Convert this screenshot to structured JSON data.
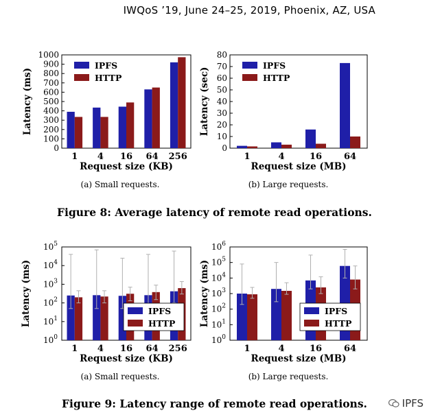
{
  "header": "IWQoS ’19, June 24–25, 2019, Phoenix, AZ, USA",
  "colors": {
    "ipfs": "#1f1fa8",
    "http": "#8b1a1a",
    "err": "#b0b0b0"
  },
  "captions": {
    "fig8_a": "(a)  Small requests.",
    "fig8_b": "(b)  Large requests.",
    "fig8": "Figure 8: Average latency of remote read operations.",
    "fig9_a": "(a)  Small requests.",
    "fig9_b": "(b)  Large requests.",
    "fig9": "Figure 9: Latency range of remote read operations."
  },
  "watermark": "IPFS",
  "chart_data": [
    {
      "type": "bar",
      "xlabel": "Request size (KB)",
      "ylabel": "Latency (ms)",
      "categories": [
        "1",
        "4",
        "16",
        "64",
        "256"
      ],
      "ylim": [
        0,
        1000
      ],
      "yticks": [
        "0",
        "100",
        "200",
        "300",
        "400",
        "500",
        "600",
        "700",
        "800",
        "900",
        "1000"
      ],
      "legend": "top-left",
      "series": [
        {
          "name": "IPFS",
          "values": [
            390,
            435,
            445,
            630,
            920
          ]
        },
        {
          "name": "HTTP",
          "values": [
            335,
            335,
            490,
            650,
            975
          ]
        }
      ]
    },
    {
      "type": "bar",
      "xlabel": "Request size (MB)",
      "ylabel": "Latency (sec)",
      "categories": [
        "1",
        "4",
        "16",
        "64"
      ],
      "ylim": [
        0,
        80
      ],
      "yticks": [
        "0",
        "10",
        "20",
        "30",
        "40",
        "50",
        "60",
        "70",
        "80"
      ],
      "legend": "top-left",
      "series": [
        {
          "name": "IPFS",
          "values": [
            2,
            5,
            16,
            73
          ]
        },
        {
          "name": "HTTP",
          "values": [
            1.5,
            3,
            3.8,
            10
          ]
        }
      ]
    },
    {
      "type": "bar",
      "log_scale": true,
      "xlabel": "Request size (KB)",
      "ylabel": "Latency (ms)",
      "categories": [
        "1",
        "4",
        "16",
        "64",
        "256"
      ],
      "ylim": [
        1,
        100000
      ],
      "yticks": [
        "10^0",
        "10^1",
        "10^2",
        "10^3",
        "10^4",
        "10^5"
      ],
      "legend": "bottom-right",
      "series": [
        {
          "name": "IPFS",
          "values": [
            250,
            260,
            240,
            260,
            420
          ],
          "err_low": [
            50,
            50,
            50,
            50,
            100
          ],
          "err_high": [
            40000,
            70000,
            25000,
            40000,
            60000
          ]
        },
        {
          "name": "HTTP",
          "values": [
            200,
            220,
            310,
            380,
            620
          ],
          "err_low": [
            100,
            100,
            130,
            150,
            300
          ],
          "err_high": [
            450,
            450,
            700,
            900,
            1400
          ]
        }
      ]
    },
    {
      "type": "bar",
      "log_scale": true,
      "xlabel": "Request size (MB)",
      "ylabel": "Latency (ms)",
      "categories": [
        "1",
        "4",
        "16",
        "64"
      ],
      "ylim": [
        1,
        1000000
      ],
      "yticks": [
        "10^0",
        "10^1",
        "10^2",
        "10^3",
        "10^4",
        "10^5",
        "10^6"
      ],
      "legend": "bottom-right",
      "series": [
        {
          "name": "IPFS",
          "values": [
            1000,
            2000,
            7000,
            60000
          ],
          "err_low": [
            200,
            300,
            2000,
            10000
          ],
          "err_high": [
            80000,
            100000,
            300000,
            700000
          ]
        },
        {
          "name": "HTTP",
          "values": [
            900,
            1500,
            2500,
            8000
          ],
          "err_low": [
            500,
            900,
            1000,
            2000
          ],
          "err_high": [
            2500,
            5000,
            12000,
            60000
          ]
        }
      ]
    }
  ]
}
